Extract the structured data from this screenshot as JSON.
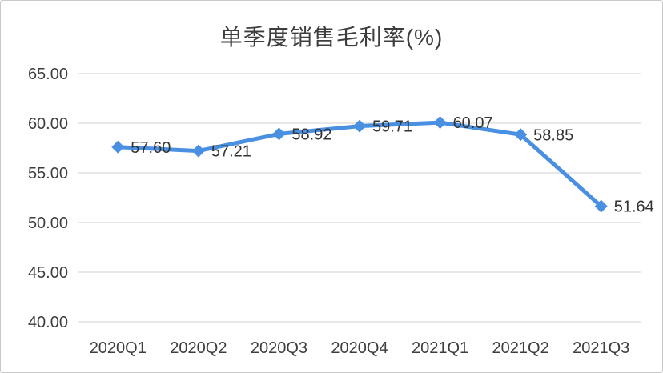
{
  "chart_data": {
    "type": "line",
    "title": "单季度销售毛利率(%)",
    "categories": [
      "2020Q1",
      "2020Q2",
      "2020Q3",
      "2020Q4",
      "2021Q1",
      "2021Q2",
      "2021Q3"
    ],
    "values": [
      57.6,
      57.21,
      58.92,
      59.71,
      60.07,
      58.85,
      51.64
    ],
    "data_labels": [
      "57.60",
      "57.21",
      "58.92",
      "59.71",
      "60.07",
      "58.85",
      "51.64"
    ],
    "xlabel": "",
    "ylabel": "",
    "ylim": [
      40,
      65
    ],
    "ytick_labels": [
      "40.00",
      "45.00",
      "50.00",
      "55.00",
      "60.00",
      "65.00"
    ],
    "grid": "horizontal",
    "legend": "none",
    "marker": "diamond",
    "colors": {
      "line": "#4a90e2",
      "grid": "#d9d9d9",
      "tick_text": "#3d3d3d",
      "label_text": "#333333",
      "title_text": "#3d3d3d",
      "background": "#ffffff",
      "border": "#c9c9c9"
    }
  }
}
